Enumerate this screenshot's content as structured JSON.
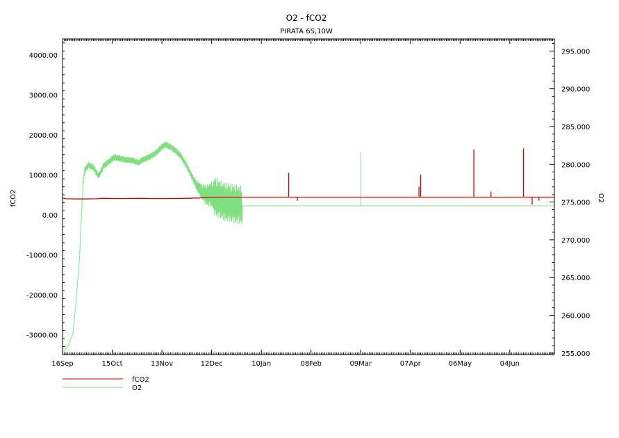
{
  "chart_data": {
    "type": "line",
    "title": "O2 - fCO2",
    "subtitle": "PIRATA 6S,10W",
    "ylabel_left": "fCO2",
    "ylabel_right": "O2",
    "x_ticks": [
      "16Sep",
      "15Oct",
      "13Nov",
      "12Dec",
      "10Jan",
      "08Feb",
      "09Mar",
      "07Apr",
      "06May",
      "04Jun"
    ],
    "x_range_days": [
      0,
      287
    ],
    "y_left": {
      "range": [
        -3500,
        4400
      ],
      "ticks": [
        4000,
        3000,
        2000,
        1000,
        0,
        -1000,
        -2000,
        -3000
      ],
      "tick_labels": [
        "4000.00",
        "3000.00",
        "2000.00",
        "1000.00",
        "0.00",
        "-1000.00",
        "-2000.00",
        "-3000.00"
      ]
    },
    "y_right": {
      "range": [
        254.8,
        296.6
      ],
      "ticks": [
        295,
        290,
        285,
        280,
        275,
        270,
        265,
        260,
        255
      ],
      "tick_labels": [
        "295.000",
        "290.000",
        "285.000",
        "280.000",
        "275.000",
        "270.000",
        "265.000",
        "260.000",
        "255.000"
      ]
    },
    "grid": false,
    "legend_position": "bottom-left",
    "series": [
      {
        "name": "fCO2",
        "axis": "left",
        "color": "#cc0000",
        "points": [
          [
            0,
            420
          ],
          [
            2,
            400
          ],
          [
            10,
            395
          ],
          [
            20,
            400
          ],
          [
            23,
            410
          ],
          [
            32,
            405
          ],
          [
            47,
            410
          ],
          [
            52,
            405
          ],
          [
            60,
            405
          ],
          [
            72,
            410
          ],
          [
            80,
            420
          ],
          [
            82,
            430
          ],
          [
            85,
            435
          ],
          [
            90,
            440
          ],
          [
            100,
            440
          ],
          [
            110,
            440
          ],
          [
            150,
            440
          ],
          [
            200,
            440
          ],
          [
            250,
            440
          ],
          [
            287,
            440
          ]
        ],
        "spikes": [
          {
            "day": 132,
            "value": 1050
          },
          {
            "day": 137,
            "value": 350
          },
          {
            "day": 209,
            "value": 1000
          },
          {
            "day": 208,
            "value": 700
          },
          {
            "day": 240,
            "value": 1630
          },
          {
            "day": 250,
            "value": 580
          },
          {
            "day": 269,
            "value": 1660
          },
          {
            "day": 274,
            "value": 250
          },
          {
            "day": 278,
            "value": 350
          }
        ]
      },
      {
        "name": "O2",
        "axis": "right",
        "color": "#80e080",
        "points": [
          [
            0,
            255.0
          ],
          [
            3,
            255.8
          ],
          [
            6,
            257.5
          ],
          [
            8,
            262.0
          ],
          [
            10,
            268.0
          ],
          [
            11,
            273.0
          ],
          [
            12,
            277.5
          ],
          [
            13,
            279.2
          ],
          [
            15,
            279.9
          ],
          [
            18,
            279.6
          ],
          [
            21,
            278.4
          ],
          [
            24,
            279.8
          ],
          [
            27,
            280.3
          ],
          [
            30,
            280.9
          ],
          [
            33,
            280.8
          ],
          [
            37,
            280.6
          ],
          [
            41,
            280.5
          ],
          [
            44,
            280.2
          ],
          [
            47,
            280.6
          ],
          [
            51,
            281.0
          ],
          [
            55,
            281.6
          ],
          [
            58,
            282.3
          ],
          [
            60,
            282.6
          ],
          [
            63,
            282.3
          ],
          [
            66,
            281.8
          ],
          [
            69,
            281.1
          ],
          [
            72,
            280.0
          ],
          [
            75,
            278.6
          ],
          [
            78,
            277.3
          ],
          [
            81,
            276.4
          ],
          [
            84,
            275.9
          ],
          [
            87,
            276.0
          ],
          [
            90,
            275.6
          ],
          [
            95,
            275.0
          ],
          [
            100,
            274.8
          ],
          [
            104,
            274.6
          ],
          [
            105,
            274.5
          ],
          [
            287,
            274.5
          ]
        ],
        "noise_until_day": 105,
        "spikes": [
          {
            "day": 174,
            "value": 281.6
          }
        ]
      }
    ]
  }
}
